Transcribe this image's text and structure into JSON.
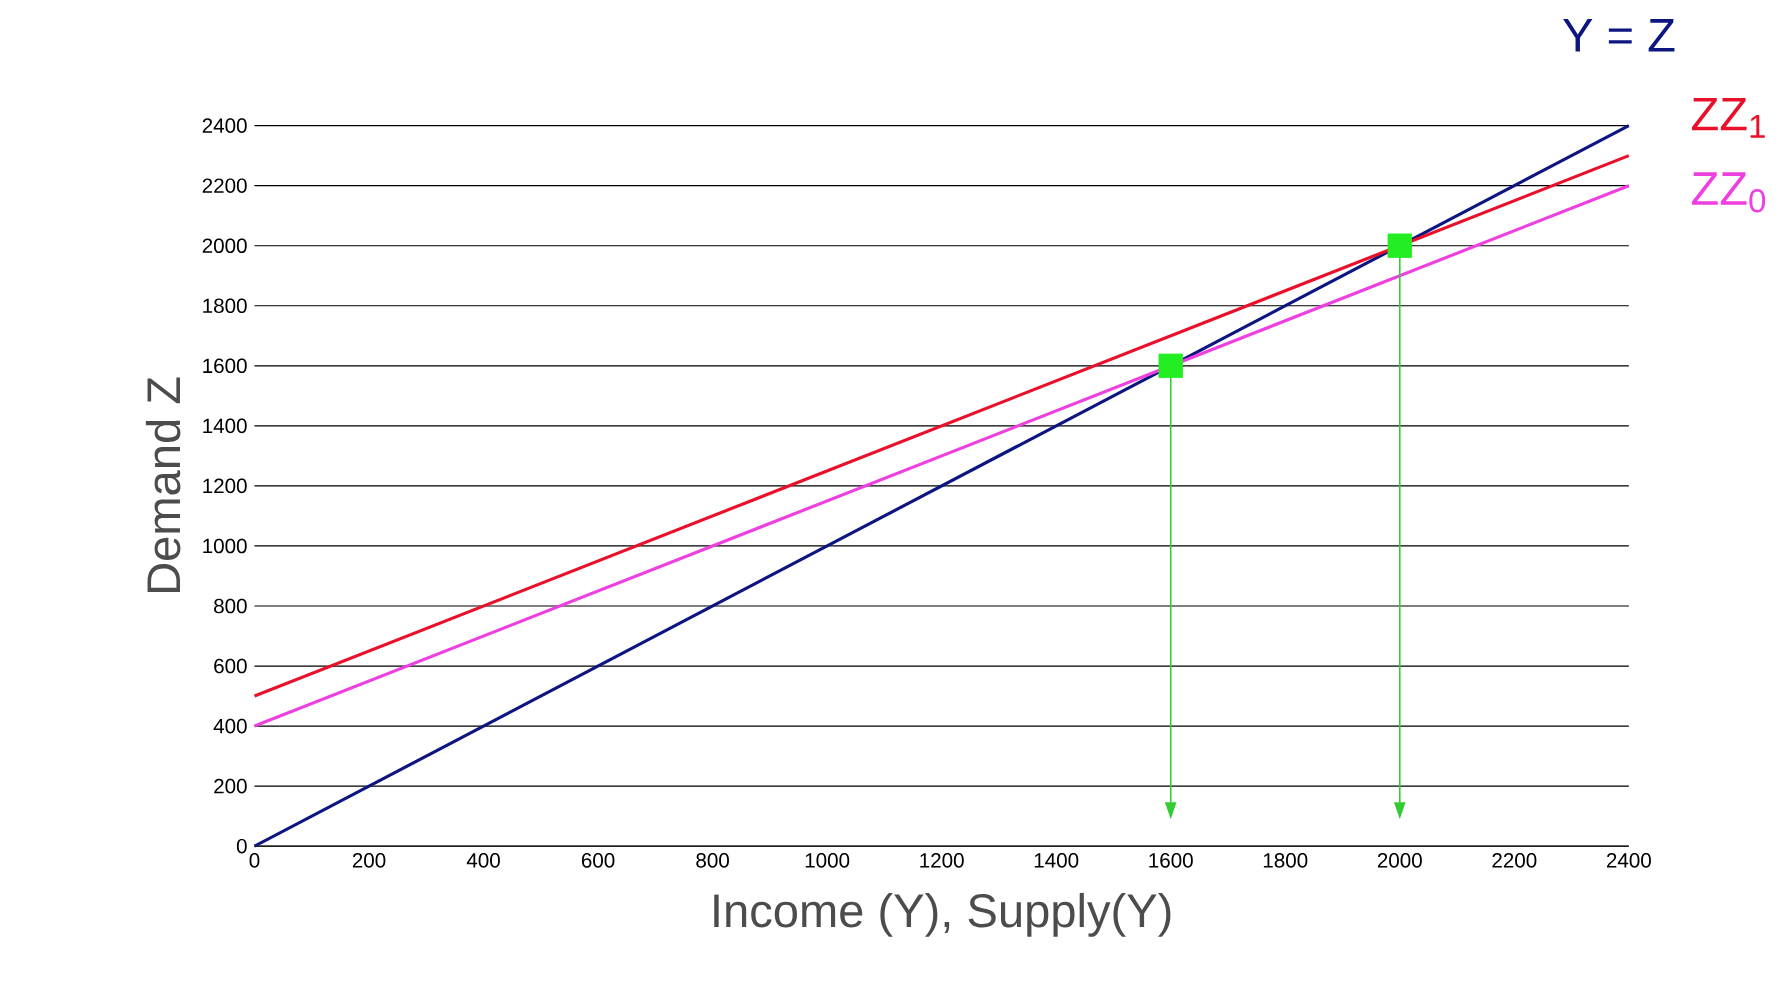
{
  "chart_data": {
    "type": "line",
    "xlabel": "Income (Y), Supply(Y)",
    "ylabel": "Demand Z",
    "xlim": [
      0,
      2400
    ],
    "ylim": [
      0,
      2400
    ],
    "xticks": [
      0,
      200,
      400,
      600,
      800,
      1000,
      1200,
      1400,
      1600,
      1800,
      2000,
      2200,
      2400
    ],
    "yticks": [
      0,
      200,
      400,
      600,
      800,
      1000,
      1200,
      1400,
      1600,
      1800,
      2000,
      2200,
      2400
    ],
    "grid": "y",
    "series": [
      {
        "name": "Y = Z",
        "color": "#0c1580",
        "x": [
          0,
          2400
        ],
        "values": [
          0,
          2400
        ]
      },
      {
        "name": "ZZ$_{1}$",
        "color": "#e8102a",
        "x": [
          0,
          2400
        ],
        "values": [
          500,
          2300
        ]
      },
      {
        "name": "ZZ$_{0}$",
        "color": "#ee3fe0",
        "x": [
          0,
          2400
        ],
        "values": [
          400,
          2200
        ]
      },
      {
        "type": "scatter",
        "marker": "square",
        "color": "#22ee22",
        "x": [
          1600,
          2000
        ],
        "values": [
          1600,
          2000
        ]
      }
    ],
    "ref_lines": [
      {
        "axis": "x",
        "value": 1600,
        "color": "#33cc33"
      },
      {
        "axis": "x",
        "value": 2000,
        "color": "#33cc33"
      }
    ]
  }
}
